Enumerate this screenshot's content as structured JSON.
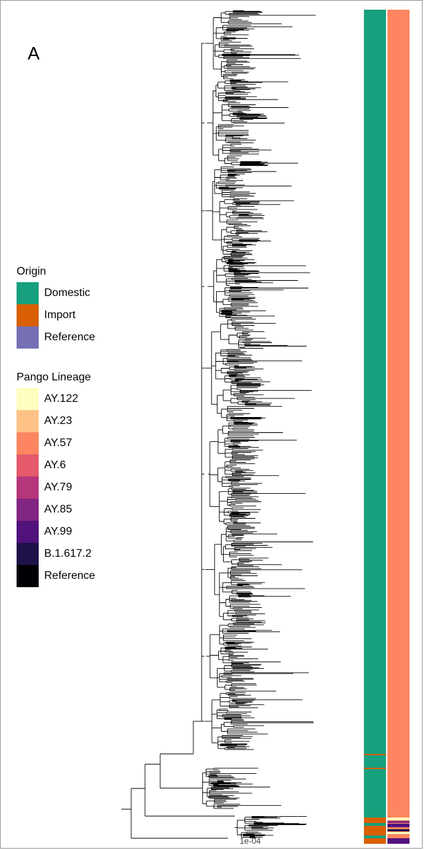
{
  "panel_label": "A",
  "legends": {
    "origin": {
      "title": "Origin",
      "items": [
        {
          "label": "Domestic",
          "color": "#16A07E"
        },
        {
          "label": "Import",
          "color": "#D95F02"
        },
        {
          "label": "Reference",
          "color": "#7570B3"
        }
      ]
    },
    "lineage": {
      "title": "Pango Lineage",
      "items": [
        {
          "label": "AY.122",
          "color": "#FCFDBF"
        },
        {
          "label": "AY.23",
          "color": "#FEC287"
        },
        {
          "label": "AY.57",
          "color": "#FD8660"
        },
        {
          "label": "AY.6",
          "color": "#E45A6B"
        },
        {
          "label": "AY.79",
          "color": "#B5367A"
        },
        {
          "label": "AY.85",
          "color": "#822681"
        },
        {
          "label": "AY.99",
          "color": "#51127C"
        },
        {
          "label": "B.1.617.2",
          "color": "#1D1147"
        },
        {
          "label": "Reference",
          "color": "#000004"
        }
      ]
    }
  },
  "scale_bar_label": "1e-04",
  "annotation_columns": {
    "origin": {
      "name": "origin",
      "base_color": "#16A07E"
    },
    "lineage": {
      "name": "lineage",
      "base_color": "#FD8660"
    }
  }
}
